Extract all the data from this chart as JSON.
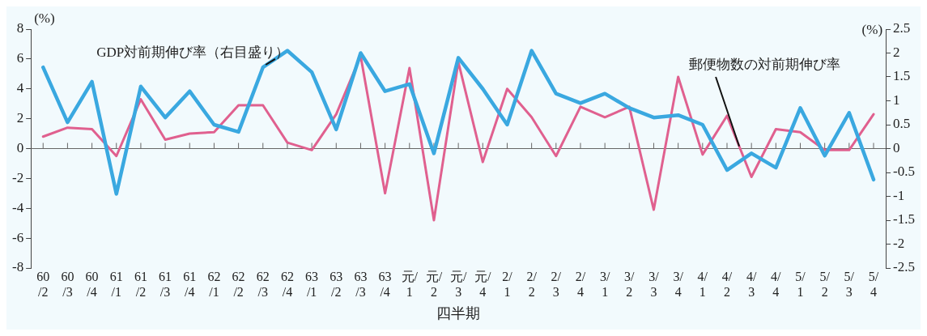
{
  "chart_data": {
    "type": "line",
    "xlabel": "四半期",
    "ylabel": "(%)",
    "y2label": "(%)",
    "categories": [
      "60/2",
      "60/3",
      "60/4",
      "61/1",
      "61/2",
      "61/3",
      "61/4",
      "62/1",
      "62/2",
      "62/3",
      "62/4",
      "63/1",
      "63/2",
      "63/3",
      "63/4",
      "元/1",
      "元/2",
      "元/3",
      "元/4",
      "2/1",
      "2/2",
      "2/3",
      "2/4",
      "3/1",
      "3/2",
      "3/3",
      "3/4",
      "4/1",
      "4/2",
      "4/3",
      "4/4",
      "5/1",
      "5/2",
      "5/3",
      "5/4"
    ],
    "series": [
      {
        "name": "GDP対前期伸び率（右目盛り）",
        "color": "#3aa8e0",
        "axis": "y2",
        "values": [
          1.7,
          0.55,
          1.4,
          -0.95,
          1.3,
          0.65,
          1.2,
          0.5,
          0.35,
          1.7,
          2.05,
          1.6,
          0.4,
          2.0,
          1.2,
          1.35,
          -0.1,
          1.9,
          1.25,
          0.5,
          2.05,
          1.15,
          0.95,
          1.15,
          0.85,
          0.65,
          0.7,
          0.5,
          -0.45,
          -0.1,
          -0.4,
          0.85,
          -0.15,
          0.75,
          -0.65
        ]
      },
      {
        "name": "郵便物数の対前期伸び率",
        "color": "#e0608f",
        "values": [
          0.8,
          1.4,
          1.3,
          -0.5,
          3.3,
          0.6,
          1.0,
          1.1,
          2.9,
          2.9,
          0.4,
          -0.1,
          2.3,
          6.2,
          -3.0,
          5.4,
          -4.8,
          5.8,
          -0.9,
          4.0,
          2.1,
          -0.5,
          2.8,
          2.1,
          2.8,
          -4.1,
          4.8,
          -0.4,
          2.2,
          -1.9,
          1.3,
          1.1,
          -0.1,
          -0.1,
          2.3
        ]
      }
    ],
    "ylim": [
      -8,
      8
    ],
    "yticks": [
      -8,
      -6,
      -4,
      -2,
      0,
      2,
      4,
      6,
      8
    ],
    "y2lim": [
      -2.5,
      2.5
    ],
    "y2ticks": [
      -2.5,
      -2,
      -1.5,
      -1,
      -0.5,
      0,
      0.5,
      1,
      1.5,
      2,
      2.5
    ],
    "ref_lines": [
      {
        "axis": "y",
        "value": 0,
        "color": "#666666"
      }
    ],
    "grid": false,
    "legend": false,
    "marker": "none",
    "line_style": "solid"
  }
}
